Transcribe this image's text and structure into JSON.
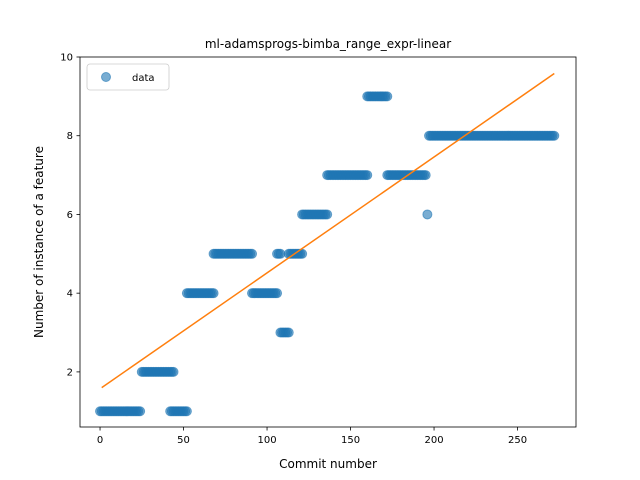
{
  "chart_data": {
    "type": "scatter",
    "title": "ml-adamsprogs-bimba_range_expr-linear",
    "xlabel": "Commit number",
    "ylabel": "Number of instance of a feature",
    "xlim": [
      -12,
      285
    ],
    "ylim": [
      0.6,
      10
    ],
    "xticks": [
      0,
      50,
      100,
      150,
      200,
      250
    ],
    "yticks": [
      2,
      4,
      6,
      8,
      10
    ],
    "legend": {
      "position": "top-left",
      "entries": [
        "data"
      ]
    },
    "colors": {
      "data": "#1f77b4",
      "fit": "#ff7f0e"
    },
    "series": [
      {
        "name": "data",
        "segments": [
          {
            "x_start": 0,
            "x_end": 24,
            "y": 1
          },
          {
            "x_start": 25,
            "x_end": 44,
            "y": 2
          },
          {
            "x_start": 42,
            "x_end": 52,
            "y": 1
          },
          {
            "x_start": 52,
            "x_end": 68,
            "y": 4
          },
          {
            "x_start": 68,
            "x_end": 91,
            "y": 5
          },
          {
            "x_start": 91,
            "x_end": 106,
            "y": 4
          },
          {
            "x_start": 106,
            "x_end": 108,
            "y": 5
          },
          {
            "x_start": 108,
            "x_end": 113,
            "y": 3
          },
          {
            "x_start": 113,
            "x_end": 121,
            "y": 5
          },
          {
            "x_start": 121,
            "x_end": 136,
            "y": 6
          },
          {
            "x_start": 136,
            "x_end": 160,
            "y": 7
          },
          {
            "x_start": 160,
            "x_end": 172,
            "y": 9
          },
          {
            "x_start": 172,
            "x_end": 195,
            "y": 7
          },
          {
            "x_start": 196,
            "x_end": 196,
            "y": 6
          },
          {
            "x_start": 197,
            "x_end": 272,
            "y": 8
          }
        ]
      },
      {
        "name": "fit",
        "type": "line",
        "x": [
          1,
          272
        ],
        "y": [
          1.6,
          9.58
        ]
      }
    ]
  }
}
